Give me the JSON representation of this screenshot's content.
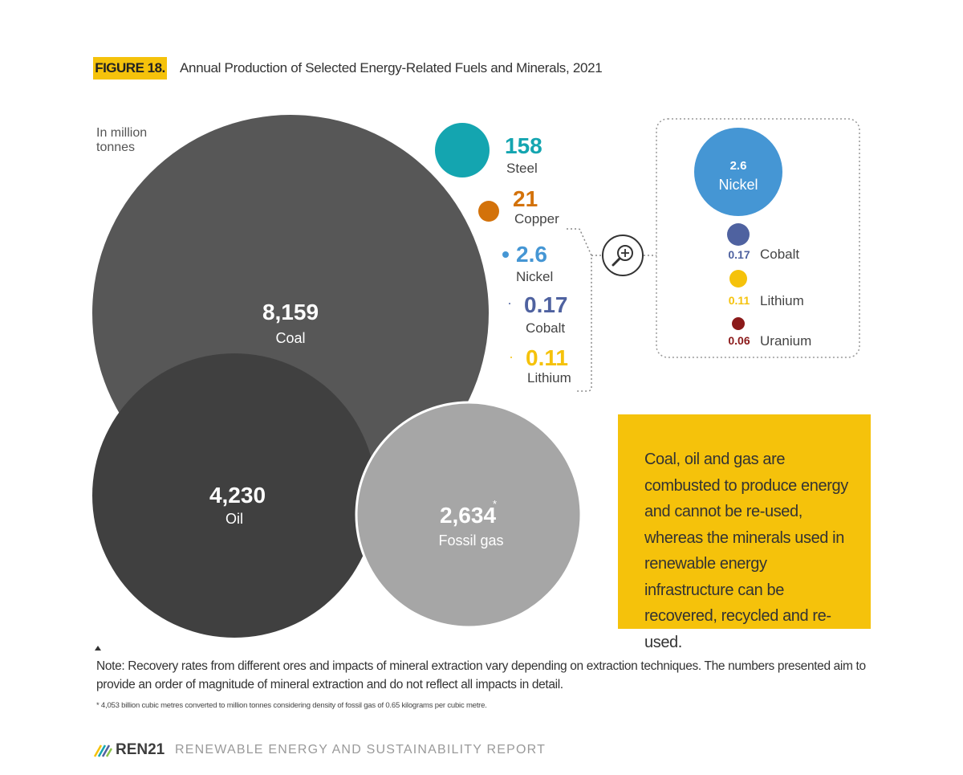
{
  "figure": {
    "badge": "FIGURE 18.",
    "title": "Annual Production of Selected Energy-Related Fuels and Minerals, 2021",
    "unit_label": "In million tonnes"
  },
  "chart_data": {
    "type": "bubble",
    "unit": "In million tonnes",
    "items": [
      {
        "name": "Coal",
        "value": 8159,
        "display": "8,159",
        "color": "#575757"
      },
      {
        "name": "Oil",
        "value": 4230,
        "display": "4,230",
        "color": "#404040"
      },
      {
        "name": "Fossil gas",
        "value": 2634,
        "display": "2,634",
        "footnote_mark": "*",
        "color": "#a6a6a6"
      },
      {
        "name": "Steel",
        "value": 158,
        "display": "158",
        "color": "#14a5b0"
      },
      {
        "name": "Copper",
        "value": 21,
        "display": "21",
        "color": "#d3720a"
      },
      {
        "name": "Nickel",
        "value": 2.6,
        "display": "2.6",
        "color": "#4596d4"
      },
      {
        "name": "Cobalt",
        "value": 0.17,
        "display": "0.17",
        "color": "#4f62a0"
      },
      {
        "name": "Lithium",
        "value": 0.11,
        "display": "0.11",
        "color": "#f5c20b"
      }
    ],
    "zoom_inset": {
      "items": [
        {
          "name": "Nickel",
          "value": 2.6,
          "display": "2.6",
          "color": "#4596d4"
        },
        {
          "name": "Cobalt",
          "value": 0.17,
          "display": "0.17",
          "color": "#4f62a0"
        },
        {
          "name": "Lithium",
          "value": 0.11,
          "display": "0.11",
          "color": "#f5c20b"
        },
        {
          "name": "Uranium",
          "value": 0.06,
          "display": "0.06",
          "color": "#8b1a1a"
        }
      ]
    }
  },
  "callout": {
    "text": "Coal, oil and gas are combusted to produce energy and cannot be re-used, whereas the minerals used in renewable energy infrastructure can be recovered, recycled and re-used."
  },
  "note": "Note: Recovery rates from different ores and impacts of mineral extraction vary depending on extraction techniques. The numbers presented aim to provide an order of magnitude of mineral extraction and do not reflect all impacts in detail.",
  "footnote": "* 4,053 billion cubic metres converted to million tonnes considering density of fossil gas of 0.65 kilograms per cubic metre.",
  "footer": {
    "brand": "REN21",
    "report": "RENEWABLE ENERGY AND SUSTAINABILITY REPORT"
  }
}
